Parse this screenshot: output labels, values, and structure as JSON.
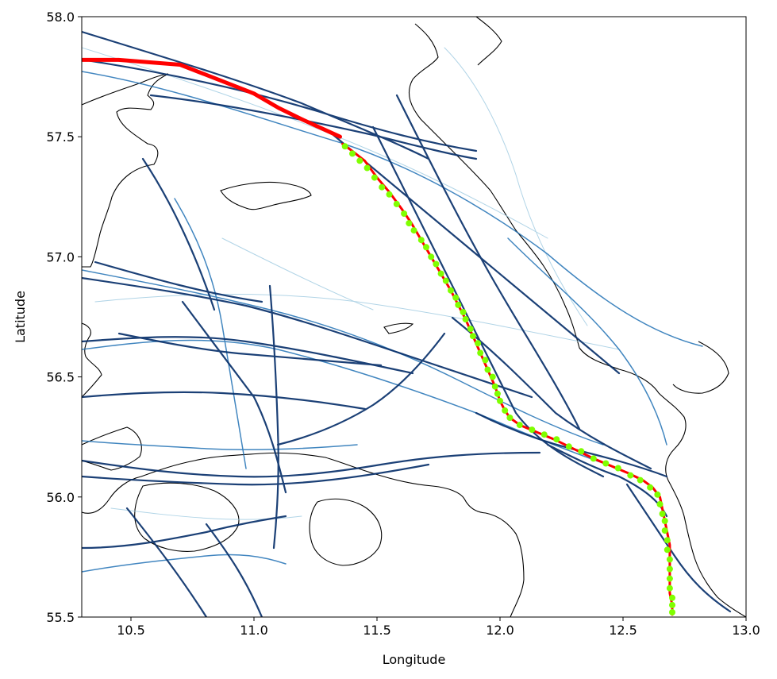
{
  "chart_data": {
    "type": "map-trajectory",
    "xlabel": "Longitude",
    "ylabel": "Latitude",
    "xlim": [
      10.3,
      13.0
    ],
    "ylim": [
      55.5,
      58.0
    ],
    "xticks": [
      "10.5",
      "11.0",
      "11.5",
      "12.0",
      "12.5",
      "13.0"
    ],
    "yticks": [
      "55.5",
      "56.0",
      "56.5",
      "57.0",
      "57.5",
      "58.0"
    ],
    "grid": false,
    "colors": {
      "tracks_dark": "#08306b",
      "tracks_mid": "#2171b5",
      "tracks_light": "#9ecae1",
      "observed_path": "#ff0000",
      "predicted_points": "#7fff00",
      "coastline": "#000000"
    },
    "observed_track": [
      [
        10.3,
        57.82
      ],
      [
        10.45,
        57.82
      ],
      [
        10.7,
        57.8
      ],
      [
        10.8,
        57.76
      ],
      [
        10.9,
        57.72
      ],
      [
        11.0,
        57.68
      ],
      [
        11.1,
        57.62
      ],
      [
        11.2,
        57.57
      ],
      [
        11.35,
        57.5
      ]
    ],
    "predicted_track": [
      [
        11.36,
        57.47
      ],
      [
        11.4,
        57.44
      ],
      [
        11.45,
        57.4
      ],
      [
        11.5,
        57.33
      ],
      [
        11.55,
        57.27
      ],
      [
        11.6,
        57.2
      ],
      [
        11.64,
        57.14
      ],
      [
        11.68,
        57.07
      ],
      [
        11.72,
        57.0
      ],
      [
        11.76,
        56.93
      ],
      [
        11.8,
        56.86
      ],
      [
        11.83,
        56.8
      ],
      [
        11.86,
        56.74
      ],
      [
        11.89,
        56.67
      ],
      [
        11.92,
        56.6
      ],
      [
        11.95,
        56.53
      ],
      [
        11.98,
        56.46
      ],
      [
        12.0,
        56.4
      ],
      [
        12.02,
        56.36
      ],
      [
        12.04,
        56.33
      ],
      [
        12.08,
        56.3
      ],
      [
        12.15,
        56.27
      ],
      [
        12.22,
        56.24
      ],
      [
        12.3,
        56.2
      ],
      [
        12.38,
        56.16
      ],
      [
        12.45,
        56.13
      ],
      [
        12.52,
        56.1
      ],
      [
        12.58,
        56.07
      ],
      [
        12.62,
        56.04
      ],
      [
        12.65,
        56.0
      ],
      [
        12.66,
        55.95
      ],
      [
        12.67,
        55.9
      ],
      [
        12.68,
        55.85
      ],
      [
        12.69,
        55.8
      ],
      [
        12.69,
        55.75
      ],
      [
        12.69,
        55.7
      ],
      [
        12.69,
        55.65
      ],
      [
        12.69,
        55.6
      ],
      [
        12.7,
        55.55
      ],
      [
        12.7,
        55.51
      ]
    ],
    "predicted_points": [
      [
        11.37,
        57.46
      ],
      [
        11.4,
        57.43
      ],
      [
        11.43,
        57.4
      ],
      [
        11.46,
        57.37
      ],
      [
        11.49,
        57.33
      ],
      [
        11.52,
        57.29
      ],
      [
        11.55,
        57.26
      ],
      [
        11.58,
        57.22
      ],
      [
        11.61,
        57.18
      ],
      [
        11.63,
        57.14
      ],
      [
        11.65,
        57.11
      ],
      [
        11.68,
        57.07
      ],
      [
        11.7,
        57.04
      ],
      [
        11.72,
        57.0
      ],
      [
        11.74,
        56.97
      ],
      [
        11.76,
        56.93
      ],
      [
        11.78,
        56.9
      ],
      [
        11.8,
        56.86
      ],
      [
        11.82,
        56.83
      ],
      [
        11.83,
        56.8
      ],
      [
        11.85,
        56.77
      ],
      [
        11.86,
        56.74
      ],
      [
        11.88,
        56.7
      ],
      [
        11.89,
        56.67
      ],
      [
        11.91,
        56.64
      ],
      [
        11.92,
        56.6
      ],
      [
        11.94,
        56.57
      ],
      [
        11.95,
        56.53
      ],
      [
        11.97,
        56.5
      ],
      [
        11.98,
        56.46
      ],
      [
        11.99,
        56.43
      ],
      [
        12.0,
        56.4
      ],
      [
        12.02,
        56.36
      ],
      [
        12.04,
        56.33
      ],
      [
        12.08,
        56.3
      ],
      [
        12.13,
        56.28
      ],
      [
        12.18,
        56.26
      ],
      [
        12.23,
        56.24
      ],
      [
        12.28,
        56.21
      ],
      [
        12.33,
        56.19
      ],
      [
        12.38,
        56.16
      ],
      [
        12.43,
        56.14
      ],
      [
        12.48,
        56.12
      ],
      [
        12.53,
        56.09
      ],
      [
        12.57,
        56.07
      ],
      [
        12.61,
        56.04
      ],
      [
        12.64,
        56.01
      ],
      [
        12.65,
        55.97
      ],
      [
        12.66,
        55.93
      ],
      [
        12.67,
        55.9
      ],
      [
        12.67,
        55.86
      ],
      [
        12.68,
        55.82
      ],
      [
        12.68,
        55.78
      ],
      [
        12.69,
        55.74
      ],
      [
        12.69,
        55.7
      ],
      [
        12.69,
        55.66
      ],
      [
        12.69,
        55.62
      ],
      [
        12.7,
        55.58
      ],
      [
        12.7,
        55.55
      ],
      [
        12.7,
        55.52
      ]
    ]
  }
}
